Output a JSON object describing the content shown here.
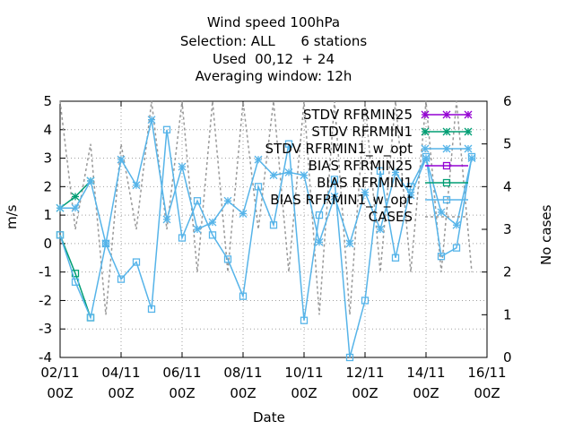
{
  "title_lines": [
    "Wind speed 100hPa",
    "Selection: ALL      6 stations",
    "Used  00,12  + 24",
    "Averaging window: 12h"
  ],
  "chart_data": {
    "type": "line",
    "title": "Wind speed 100hPa",
    "subtitle": [
      "Selection: ALL      6 stations",
      "Used  00,12  + 24",
      "Averaging window: 12h"
    ],
    "xlabel": "Date",
    "ylabel": "m/s",
    "y2label": "No cases",
    "xlim": [
      0,
      28
    ],
    "ylim": [
      -4,
      5
    ],
    "y2lim": [
      0,
      6
    ],
    "grid": true,
    "legend_position": "top-right",
    "x_tick_labels": [
      {
        "x": 0,
        "line1": "02/11",
        "line2": "00Z"
      },
      {
        "x": 4,
        "line1": "04/11",
        "line2": "00Z"
      },
      {
        "x": 8,
        "line1": "06/11",
        "line2": "00Z"
      },
      {
        "x": 12,
        "line1": "08/11",
        "line2": "00Z"
      },
      {
        "x": 16,
        "line1": "10/11",
        "line2": "00Z"
      },
      {
        "x": 20,
        "line1": "12/11",
        "line2": "00Z"
      },
      {
        "x": 24,
        "line1": "14/11",
        "line2": "00Z"
      },
      {
        "x": 28,
        "line1": "16/11",
        "line2": "00Z"
      }
    ],
    "y_ticks": [
      -4,
      -3,
      -2,
      -1,
      0,
      1,
      2,
      3,
      4,
      5
    ],
    "y2_ticks": [
      0,
      1,
      2,
      3,
      4,
      5,
      6
    ],
    "series": [
      {
        "name": "STDV RFRMIN25",
        "axis": "y",
        "color": "#9400d3",
        "marker": "star",
        "x": [],
        "values": []
      },
      {
        "name": "STDV RFRMIN1",
        "axis": "y",
        "color": "#009e73",
        "marker": "star",
        "x": [
          0,
          1,
          2
        ],
        "values": [
          1.25,
          1.65,
          2.2
        ]
      },
      {
        "name": "STDV RFRMIN1_w_opt",
        "axis": "y",
        "color": "#56b4e9",
        "marker": "star",
        "x": [
          0,
          1,
          2,
          3,
          4,
          5,
          6,
          7,
          8,
          9,
          10,
          11,
          12,
          13,
          14,
          15,
          16,
          17,
          18,
          19,
          20,
          21,
          22,
          23,
          24,
          25,
          26,
          27
        ],
        "values": [
          1.25,
          1.25,
          2.2,
          0,
          2.95,
          2.05,
          4.35,
          0.85,
          2.7,
          0.5,
          0.75,
          1.5,
          1.05,
          2.95,
          2.4,
          2.5,
          2.4,
          0.05,
          1.65,
          0,
          1.8,
          0.5,
          2.5,
          1.7,
          3.0,
          1.1,
          0.65,
          3.0
        ]
      },
      {
        "name": "BIAS RFRMIN25",
        "axis": "y",
        "color": "#9400d3",
        "marker": "square",
        "x": [],
        "values": []
      },
      {
        "name": "BIAS RFRMIN1",
        "axis": "y",
        "color": "#009e73",
        "marker": "square",
        "x": [
          0,
          1,
          2
        ],
        "values": [
          0.3,
          -1.05,
          -2.6
        ]
      },
      {
        "name": "BIAS RFRMIN1_w_opt",
        "axis": "y",
        "color": "#56b4e9",
        "marker": "square",
        "x": [
          0,
          1,
          2,
          3,
          4,
          5,
          6,
          7,
          8,
          9,
          10,
          11,
          12,
          13,
          14,
          15,
          16,
          17,
          18,
          19,
          20,
          21,
          22,
          23,
          24,
          25,
          26,
          27
        ],
        "values": [
          0.3,
          -1.35,
          -2.6,
          0,
          -1.25,
          -0.65,
          -2.3,
          4.0,
          0.2,
          1.5,
          0.3,
          -0.55,
          -1.85,
          2.0,
          0.65,
          3.5,
          -2.7,
          1.0,
          2.25,
          -4.0,
          -2.0,
          2.55,
          -0.5,
          2.0,
          3.05,
          -0.45,
          -0.15,
          3.05
        ]
      },
      {
        "name": "CASES",
        "axis": "y2",
        "color": "#999999",
        "dashed": true,
        "x": [
          0,
          1,
          2,
          3,
          4,
          5,
          6,
          7,
          8,
          9,
          10,
          11,
          12,
          13,
          14,
          15,
          16,
          17,
          18,
          19,
          20,
          21,
          22,
          23,
          24,
          25,
          26,
          27
        ],
        "values": [
          6,
          3,
          5,
          1,
          5,
          3,
          6,
          3,
          6,
          2,
          6,
          2,
          6,
          3,
          6,
          2,
          6,
          1,
          6,
          1,
          6,
          2,
          6,
          2,
          6,
          2,
          6,
          2
        ]
      }
    ]
  },
  "legend_entries": [
    "STDV RFRMIN25",
    "STDV RFRMIN1",
    "STDV RFRMIN1_w_opt",
    "BIAS RFRMIN25",
    "BIAS RFRMIN1",
    "BIAS RFRMIN1_w_opt",
    "CASES"
  ]
}
